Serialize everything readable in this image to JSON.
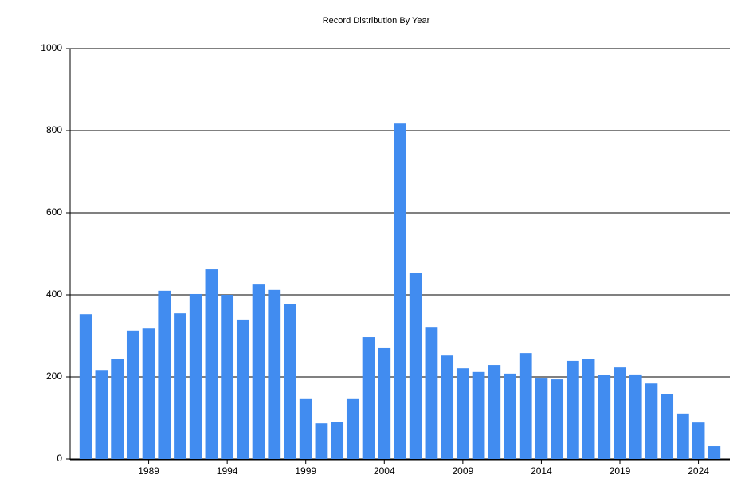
{
  "chart_data": {
    "type": "bar",
    "title": "Record Distribution By Year",
    "x": [
      1985,
      1986,
      1987,
      1988,
      1989,
      1990,
      1991,
      1992,
      1993,
      1994,
      1995,
      1996,
      1997,
      1998,
      1999,
      2000,
      2001,
      2002,
      2003,
      2004,
      2005,
      2006,
      2007,
      2008,
      2009,
      2010,
      2011,
      2012,
      2013,
      2014,
      2015,
      2016,
      2017,
      2018,
      2019,
      2020,
      2021,
      2022,
      2023,
      2024,
      2025
    ],
    "values": [
      353,
      217,
      243,
      313,
      318,
      410,
      355,
      402,
      462,
      400,
      340,
      425,
      412,
      377,
      146,
      87,
      91,
      146,
      297,
      270,
      819,
      454,
      320,
      252,
      221,
      212,
      229,
      208,
      258,
      196,
      194,
      239,
      243,
      204,
      223,
      206,
      184,
      159,
      111,
      89,
      31
    ],
    "color": "#418cf0",
    "xlim": [
      1984,
      2026
    ],
    "xticks": [
      1989,
      1994,
      1999,
      2004,
      2009,
      2014,
      2019,
      2024
    ],
    "ylim": [
      0,
      1000
    ],
    "yticks": [
      0,
      200,
      400,
      600,
      800,
      1000
    ],
    "grid": true
  }
}
